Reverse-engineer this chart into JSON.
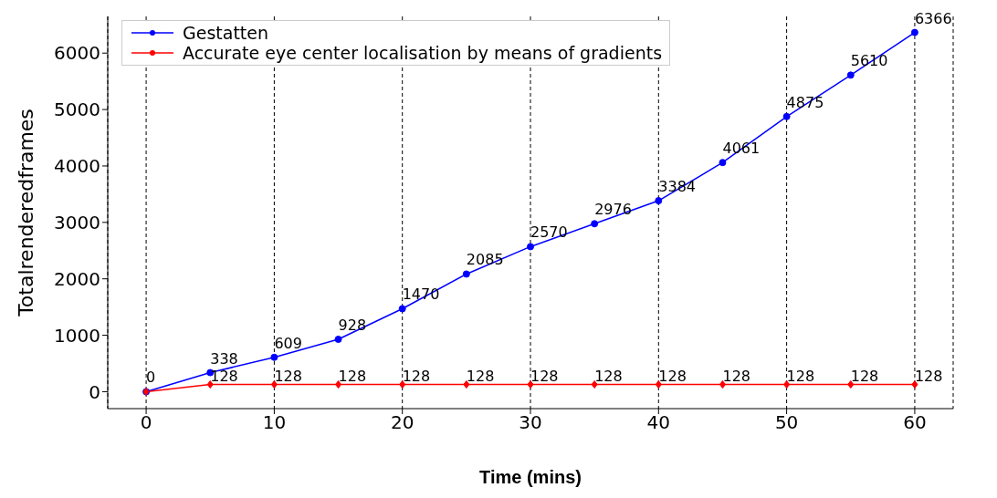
{
  "chart_data": {
    "type": "line",
    "xlabel": "Time (mins)",
    "ylabel": "Totalrenderedframes",
    "x": [
      0,
      5,
      10,
      15,
      20,
      25,
      30,
      35,
      40,
      45,
      50,
      55,
      60
    ],
    "series": [
      {
        "name": "Gestatten",
        "color": "#0000ff",
        "marker": "circle",
        "values": [
          0,
          338,
          609,
          928,
          1470,
          2085,
          2570,
          2976,
          3384,
          4061,
          4875,
          5610,
          6366
        ],
        "value_labels": [
          "0",
          "338",
          "609",
          "928",
          "1470",
          "2085",
          "2570",
          "2976",
          "3384",
          "4061",
          "4875",
          "5610",
          "6366"
        ]
      },
      {
        "name": "Accurate eye center localisation by means of gradients",
        "color": "#ff0000",
        "marker": "diamond",
        "values": [
          0,
          128,
          128,
          128,
          128,
          128,
          128,
          128,
          128,
          128,
          128,
          128,
          128
        ],
        "value_labels": [
          null,
          "128",
          "128",
          "128",
          "128",
          "128",
          "128",
          "128",
          "128",
          "128",
          "128",
          "128",
          "128"
        ]
      }
    ],
    "xlim": [
      -3,
      63
    ],
    "xticks": [
      0,
      10,
      20,
      30,
      40,
      50,
      60
    ],
    "ylim": [
      -300,
      6650
    ],
    "yticks": [
      0,
      1000,
      2000,
      3000,
      4000,
      5000,
      6000
    ],
    "grid": "x",
    "legend": "top left"
  }
}
